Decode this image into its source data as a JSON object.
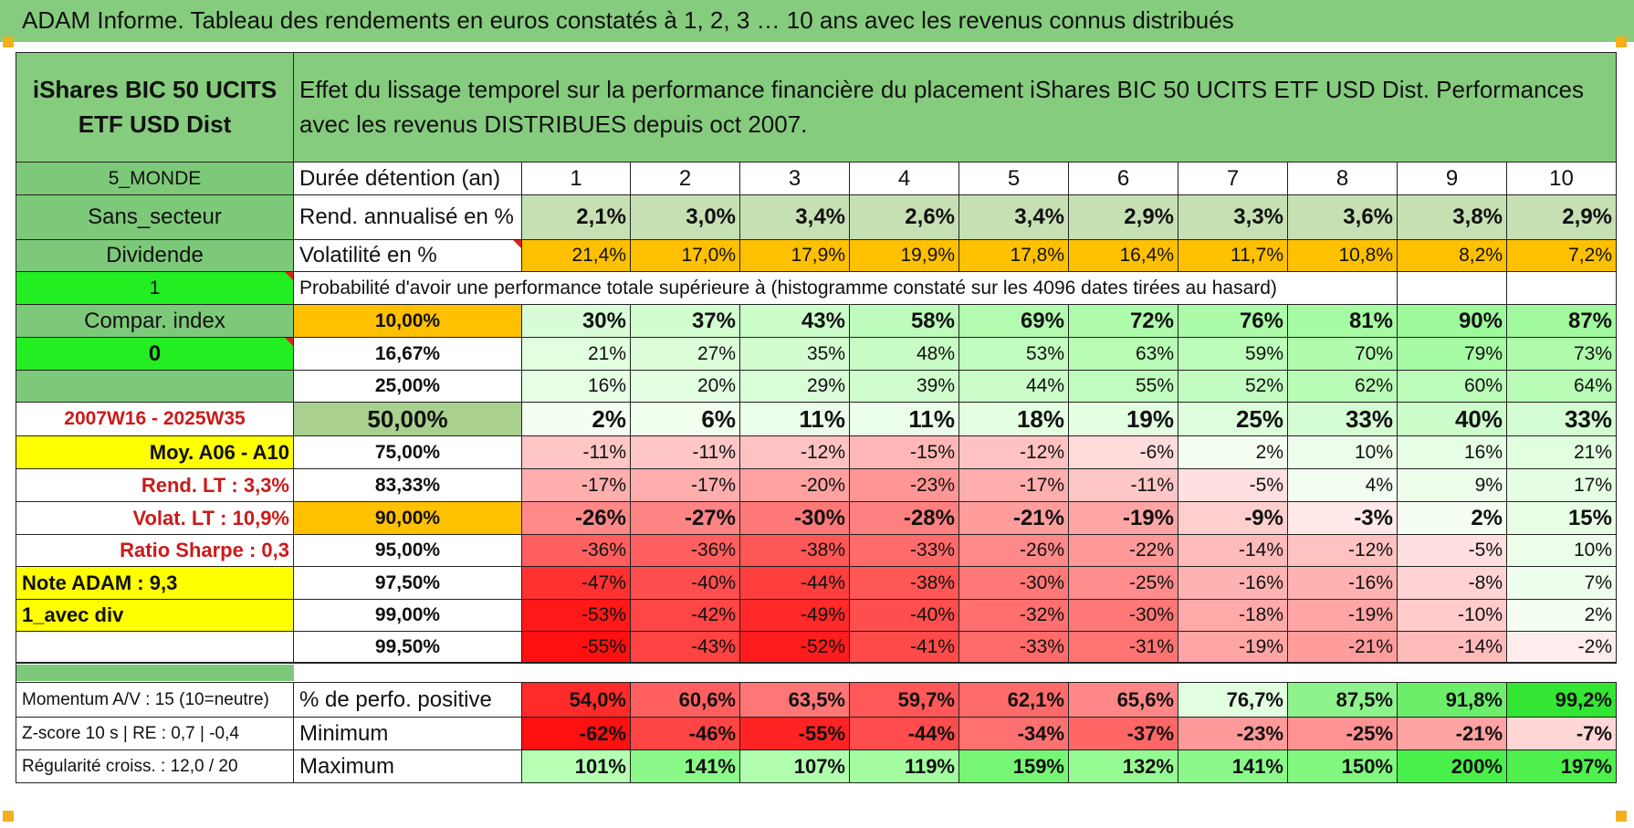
{
  "title": "ADAM Informe. Tableau des rendements en euros constatés à 1, 2, 3 … 10 ans avec les revenus connus distribués",
  "fund_name": "iShares BIC 50 UCITS ETF USD Dist",
  "description": "Effet du lissage temporel sur la performance financière du placement iShares BIC 50 UCITS ETF USD Dist. Performances avec les revenus DISTRIBUES depuis oct 2007.",
  "side": {
    "zone": "5_MONDE",
    "secteur": "Sans_secteur",
    "type": "Dividende",
    "flag1": "1",
    "compar": "Compar. index",
    "flag0": "0",
    "period": "2007W16 - 2025W35",
    "moy": "Moy. A06 - A10",
    "rend_lt": "Rend. LT :   3,3%",
    "volat_lt": "Volat. LT :   10,9%",
    "sharpe": "Ratio Sharpe :    0,3",
    "note": "Note ADAM : 9,3",
    "avec_div": "1_avec div",
    "momentum": "Momentum A/V : 15 (10=neutre)",
    "zscore": "Z-score 10 s | RE : 0,7 | -0,4",
    "regularite": "Régularité croiss. : 12,0 / 20"
  },
  "labels": {
    "duree": "Durée détention (an)",
    "rend": "Rend. annualisé en %",
    "vol": "Volatilité en %",
    "prob": "Probabilité d'avoir une performance totale supérieure à (histogramme constaté sur les 4096 dates tirées au hasard)",
    "pos": "% de perfo. positive",
    "min": "Minimum",
    "max": "Maximum"
  },
  "years": [
    "1",
    "2",
    "3",
    "4",
    "5",
    "6",
    "7",
    "8",
    "9",
    "10"
  ],
  "rend": [
    "2,1%",
    "3,0%",
    "3,4%",
    "2,6%",
    "3,4%",
    "2,9%",
    "3,3%",
    "3,6%",
    "3,8%",
    "2,9%"
  ],
  "vol": [
    "21,4%",
    "17,0%",
    "17,9%",
    "19,9%",
    "17,8%",
    "16,4%",
    "11,7%",
    "10,8%",
    "8,2%",
    "7,2%"
  ],
  "prob_rows": [
    {
      "threshold": "10,00%",
      "values": [
        "30%",
        "37%",
        "43%",
        "58%",
        "69%",
        "72%",
        "76%",
        "81%",
        "90%",
        "87%"
      ]
    },
    {
      "threshold": "16,67%",
      "values": [
        "21%",
        "27%",
        "35%",
        "48%",
        "53%",
        "63%",
        "59%",
        "70%",
        "79%",
        "73%"
      ]
    },
    {
      "threshold": "25,00%",
      "values": [
        "16%",
        "20%",
        "29%",
        "39%",
        "44%",
        "55%",
        "52%",
        "62%",
        "60%",
        "64%"
      ]
    },
    {
      "threshold": "50,00%",
      "values": [
        "2%",
        "6%",
        "11%",
        "11%",
        "18%",
        "19%",
        "25%",
        "33%",
        "40%",
        "33%"
      ]
    },
    {
      "threshold": "75,00%",
      "values": [
        "-11%",
        "-11%",
        "-12%",
        "-15%",
        "-12%",
        "-6%",
        "2%",
        "10%",
        "16%",
        "21%"
      ]
    },
    {
      "threshold": "83,33%",
      "values": [
        "-17%",
        "-17%",
        "-20%",
        "-23%",
        "-17%",
        "-11%",
        "-5%",
        "4%",
        "9%",
        "17%"
      ]
    },
    {
      "threshold": "90,00%",
      "values": [
        "-26%",
        "-27%",
        "-30%",
        "-28%",
        "-21%",
        "-19%",
        "-9%",
        "-3%",
        "2%",
        "15%"
      ]
    },
    {
      "threshold": "95,00%",
      "values": [
        "-36%",
        "-36%",
        "-38%",
        "-33%",
        "-26%",
        "-22%",
        "-14%",
        "-12%",
        "-5%",
        "10%"
      ]
    },
    {
      "threshold": "97,50%",
      "values": [
        "-47%",
        "-40%",
        "-44%",
        "-38%",
        "-30%",
        "-25%",
        "-16%",
        "-16%",
        "-8%",
        "7%"
      ]
    },
    {
      "threshold": "99,00%",
      "values": [
        "-53%",
        "-42%",
        "-49%",
        "-40%",
        "-32%",
        "-30%",
        "-18%",
        "-19%",
        "-10%",
        "2%"
      ]
    },
    {
      "threshold": "99,50%",
      "values": [
        "-55%",
        "-43%",
        "-52%",
        "-41%",
        "-33%",
        "-31%",
        "-19%",
        "-21%",
        "-14%",
        "-2%"
      ]
    }
  ],
  "pos": [
    "54,0%",
    "60,6%",
    "63,5%",
    "59,7%",
    "62,1%",
    "65,6%",
    "76,7%",
    "87,5%",
    "91,8%",
    "99,2%"
  ],
  "min": [
    "-62%",
    "-46%",
    "-55%",
    "-44%",
    "-34%",
    "-37%",
    "-23%",
    "-25%",
    "-21%",
    "-7%"
  ],
  "max": [
    "101%",
    "141%",
    "107%",
    "119%",
    "159%",
    "132%",
    "141%",
    "150%",
    "200%",
    "197%"
  ],
  "colors": {
    "header_green": "#86cc7e",
    "side_green": "#7dc97a",
    "bright_green": "#22ee22",
    "yellow": "#ffff00",
    "orange": "#ffc000",
    "red_text": "#cc1a1a"
  }
}
